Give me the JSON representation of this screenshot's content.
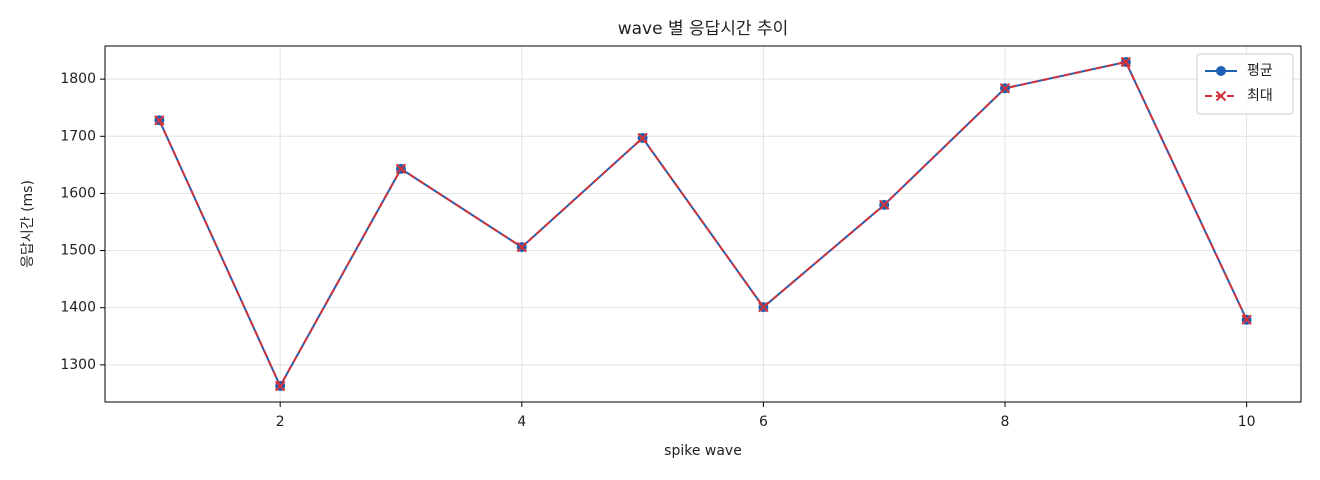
{
  "chart_data": {
    "type": "line",
    "title": "wave 별 응답시간 추이",
    "xlabel": "spike wave",
    "ylabel": "응답시간 (ms)",
    "x": [
      1,
      2,
      3,
      4,
      5,
      6,
      7,
      8,
      9,
      10
    ],
    "series": [
      {
        "name": "평균",
        "color": "#1f5fb4",
        "marker": "o",
        "linestyle": "solid",
        "values": [
          1728,
          1263,
          1643,
          1506,
          1697,
          1401,
          1580,
          1784,
          1830,
          1379
        ]
      },
      {
        "name": "최대",
        "color": "#d0343a",
        "marker": "x",
        "linestyle": "dashed",
        "values": [
          1728,
          1263,
          1643,
          1506,
          1697,
          1401,
          1580,
          1784,
          1830,
          1379
        ]
      }
    ],
    "xlim": [
      0.55,
      10.45
    ],
    "ylim": [
      1235,
      1858
    ],
    "xticks": [
      2,
      4,
      6,
      8,
      10
    ],
    "yticks": [
      1300,
      1400,
      1500,
      1600,
      1700,
      1800
    ],
    "grid": true,
    "legend_loc": "upper right"
  }
}
